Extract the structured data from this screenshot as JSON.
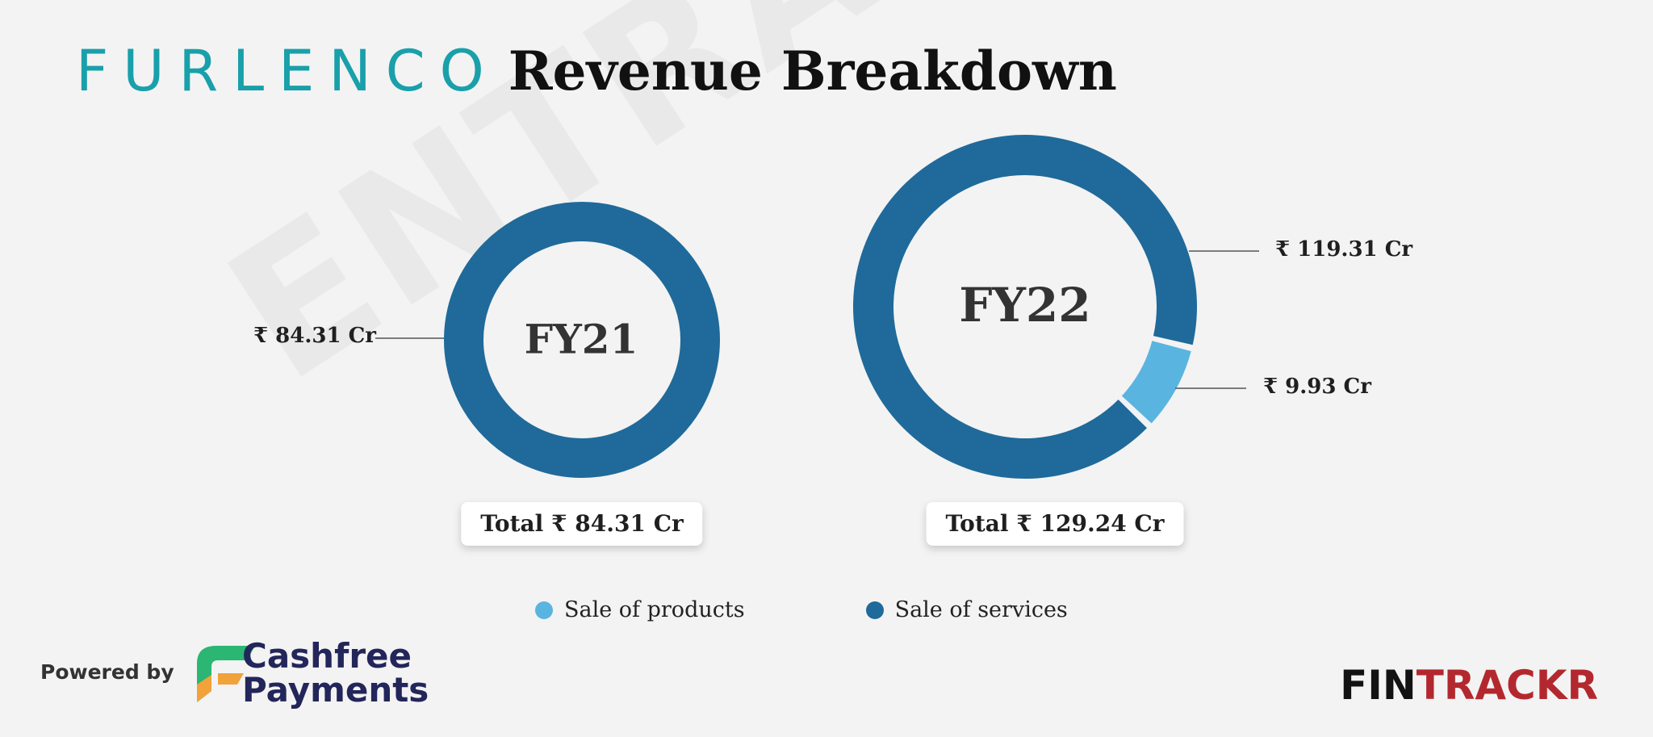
{
  "header": {
    "brand": "FURLENCO",
    "title": "Revenue Breakdown"
  },
  "watermark": "ENTRACKR",
  "colors": {
    "products": "#5ab4e0",
    "services": "#1f6a9a"
  },
  "chart_data": {
    "type": "donut",
    "title": "Revenue Breakdown",
    "charts": [
      {
        "period": "FY21",
        "total_label": "Total ₹ 84.31 Cr",
        "slices": [
          {
            "name": "Sale of services",
            "value": 84.31,
            "label": "₹ 84.31 Cr"
          }
        ]
      },
      {
        "period": "FY22",
        "total_label": "Total ₹ 129.24 Cr",
        "slices": [
          {
            "name": "Sale of services",
            "value": 119.31,
            "label": "₹ 119.31 Cr"
          },
          {
            "name": "Sale of products",
            "value": 9.93,
            "label": "₹ 9.93 Cr"
          }
        ]
      }
    ],
    "legend": [
      "Sale of products",
      "Sale of services"
    ],
    "legend_position": "bottom-center"
  },
  "footer": {
    "powered_by": "Powered by",
    "partner_line1": "Cashfree",
    "partner_line2": "Payments",
    "fintrackr_a": "FIN",
    "fintrackr_b": "TRACKR"
  }
}
